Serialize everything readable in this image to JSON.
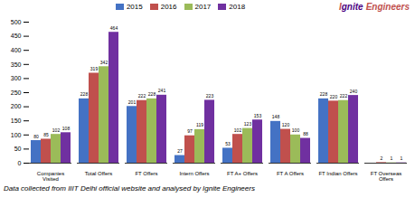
{
  "chart_data": {
    "type": "bar",
    "categories": [
      "Companies\nVisited",
      "Total Offers",
      "FT Offers",
      "Intern Offers",
      "FT A+ Offers",
      "FT A Offers",
      "FT Indian Offers",
      "FT Overseas\nOffers"
    ],
    "series": [
      {
        "name": "2015",
        "color": "#4472C4",
        "values": [
          80,
          228,
          201,
          27,
          53,
          148,
          228,
          0
        ]
      },
      {
        "name": "2016",
        "color": "#C0504D",
        "values": [
          85,
          319,
          222,
          97,
          102,
          120,
          220,
          2
        ]
      },
      {
        "name": "2017",
        "color": "#9BBB59",
        "values": [
          102,
          342,
          228,
          119,
          123,
          100,
          222,
          1
        ]
      },
      {
        "name": "2018",
        "color": "#7030A0",
        "values": [
          108,
          464,
          241,
          223,
          153,
          88,
          240,
          1
        ]
      }
    ],
    "ylim": [
      0,
      500
    ],
    "yticks": [
      0,
      50,
      100,
      150,
      200,
      250,
      300,
      350,
      400,
      450,
      500
    ],
    "grid": false,
    "legend": "top",
    "data_labels": true,
    "annotations": [
      {
        "text": "I",
        "color": "#C0504D"
      },
      {
        "text": "gnite",
        "color": "#4B0082"
      },
      {
        "text": "Engineers",
        "color": "#C0504D"
      },
      {
        "text": "Data collected from IIIT Delhi official website and analysed by Ignite Engineers"
      }
    ]
  }
}
